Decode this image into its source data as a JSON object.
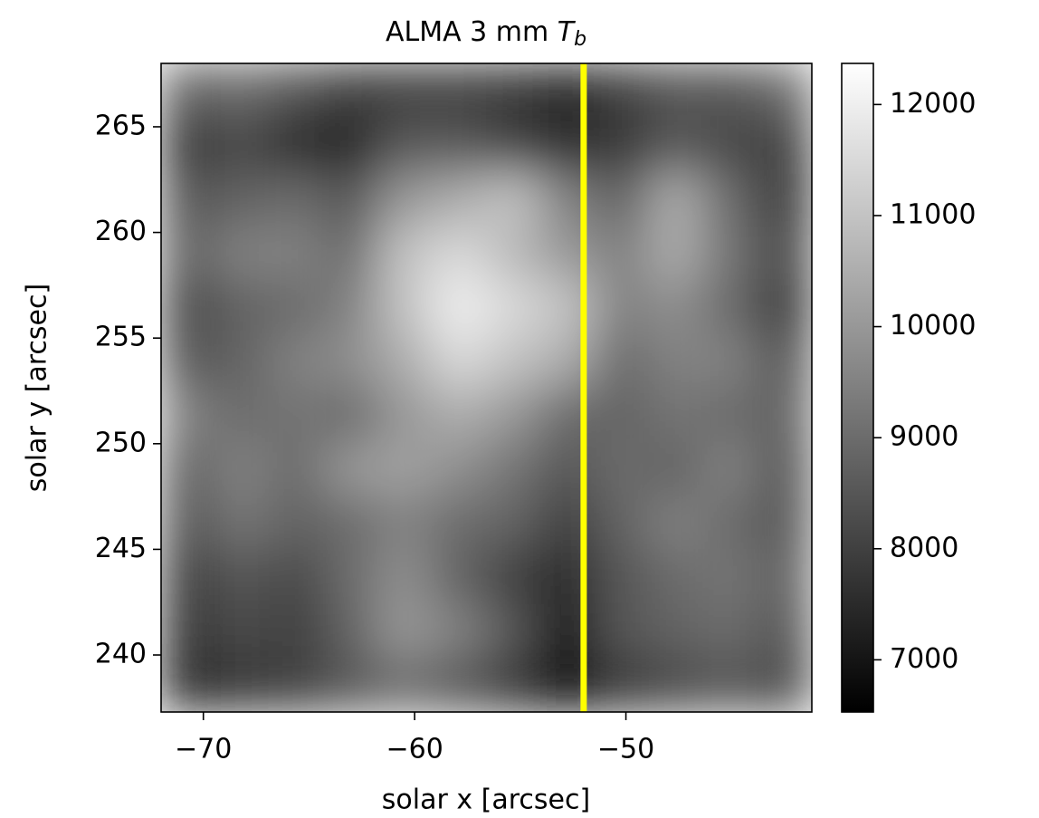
{
  "chart_data": {
    "type": "heatmap",
    "title": {
      "text": "ALMA 3 mm",
      "symbol": "T",
      "subscript": "b"
    },
    "xlabel": "solar x [arcsec]",
    "ylabel": "solar y [arcsec]",
    "xlim": [
      -72.0,
      -41.2
    ],
    "ylim": [
      237.3,
      268.0
    ],
    "xticks": [
      {
        "value": -70,
        "label": "−70"
      },
      {
        "value": -60,
        "label": "−60"
      },
      {
        "value": -50,
        "label": "−50"
      }
    ],
    "yticks": [
      240,
      245,
      250,
      255,
      260,
      265
    ],
    "x": [
      -70.7,
      -68.2,
      -65.6,
      -63.0,
      -60.5,
      -57.9,
      -55.3,
      -52.8,
      -50.2,
      -47.6,
      -45.1,
      -42.5
    ],
    "y": [
      266.7,
      264.2,
      261.6,
      259.0,
      256.5,
      253.9,
      251.4,
      248.8,
      246.2,
      243.7,
      241.1,
      238.6
    ],
    "z": [
      [
        8800,
        9000,
        8500,
        8000,
        8000,
        8000,
        7800,
        7500,
        8000,
        8500,
        8500,
        9000
      ],
      [
        7800,
        8200,
        7500,
        7300,
        8500,
        8500,
        8000,
        7500,
        7800,
        8500,
        8200,
        8000
      ],
      [
        8500,
        8800,
        9000,
        8500,
        10000,
        10500,
        11000,
        9500,
        8800,
        10500,
        9000,
        7800
      ],
      [
        8800,
        9500,
        9500,
        9000,
        11000,
        11500,
        10800,
        10000,
        9500,
        10500,
        9200,
        8200
      ],
      [
        8200,
        8800,
        9000,
        9500,
        11000,
        12000,
        11500,
        11000,
        9500,
        9800,
        9000,
        7800
      ],
      [
        8500,
        8800,
        9500,
        9800,
        10500,
        11500,
        11000,
        10500,
        9000,
        9500,
        9500,
        8500
      ],
      [
        9500,
        9000,
        9200,
        9000,
        10000,
        10500,
        10000,
        9000,
        8800,
        9200,
        9000,
        8800
      ],
      [
        8800,
        9500,
        9000,
        10000,
        10200,
        9800,
        9200,
        8500,
        9000,
        8800,
        9500,
        8500
      ],
      [
        8500,
        9200,
        8800,
        9000,
        9500,
        9000,
        8800,
        8000,
        8800,
        9500,
        9000,
        8500
      ],
      [
        8000,
        8500,
        8200,
        9000,
        9800,
        8800,
        8000,
        7500,
        8500,
        9000,
        9200,
        8800
      ],
      [
        7800,
        8200,
        8000,
        8800,
        10000,
        9500,
        8500,
        7000,
        8500,
        8800,
        9000,
        8500
      ],
      [
        7500,
        7800,
        8000,
        8500,
        9000,
        8500,
        7800,
        6700,
        7800,
        8200,
        8500,
        8200
      ]
    ],
    "colormap": "gray",
    "colorbar": {
      "lim": [
        6530,
        12370
      ],
      "ticks": [
        7000,
        8000,
        9000,
        10000,
        11000,
        12000
      ]
    },
    "vline": {
      "x": -52.0,
      "color": "#ffff00"
    }
  }
}
